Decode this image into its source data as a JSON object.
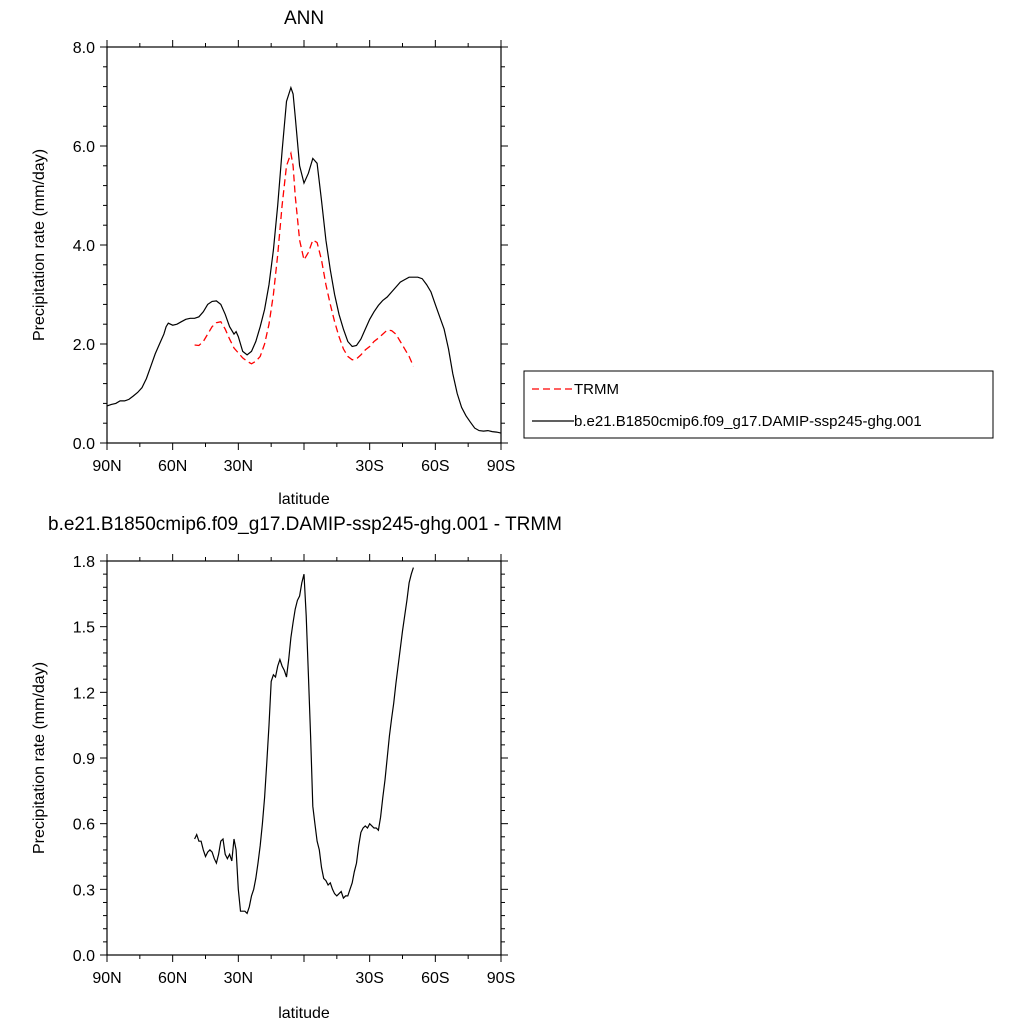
{
  "chart_data": [
    {
      "type": "line",
      "title": "ANN",
      "xlabel": "latitude",
      "ylabel": "Precipitation rate (mm/day)",
      "xlim": [
        90,
        -90
      ],
      "ylim": [
        0,
        8
      ],
      "x_tick_values": [
        90,
        60,
        30,
        0,
        -30,
        -60,
        -90
      ],
      "x_tick_labels": [
        "90N",
        "60N",
        "30N",
        "",
        "30S",
        "60S",
        "90S"
      ],
      "y_tick_values": [
        0,
        2,
        4,
        6,
        8
      ],
      "y_tick_labels": [
        "0.0",
        "2.0",
        "4.0",
        "6.0",
        "8.0"
      ],
      "legend_position": "right",
      "series": [
        {
          "name": "TRMM",
          "color": "#ff0000",
          "dash": true,
          "x": [
            50,
            48,
            46,
            44,
            42,
            40,
            38,
            36,
            34,
            32,
            30,
            28,
            26,
            24,
            22,
            20,
            18,
            16,
            14,
            12,
            10,
            8,
            6,
            5,
            4,
            2,
            0,
            -2,
            -4,
            -6,
            -8,
            -10,
            -12,
            -14,
            -16,
            -18,
            -20,
            -22,
            -24,
            -26,
            -28,
            -30,
            -32,
            -34,
            -36,
            -38,
            -40,
            -42,
            -44,
            -46,
            -48,
            -50
          ],
          "y": [
            1.98,
            1.97,
            2.05,
            2.2,
            2.35,
            2.43,
            2.45,
            2.3,
            2.1,
            1.92,
            1.82,
            1.72,
            1.65,
            1.6,
            1.65,
            1.75,
            2.0,
            2.4,
            3.0,
            3.8,
            4.8,
            5.6,
            5.85,
            5.6,
            5.0,
            4.1,
            3.7,
            3.85,
            4.1,
            4.05,
            3.7,
            3.2,
            2.8,
            2.45,
            2.15,
            1.9,
            1.75,
            1.68,
            1.7,
            1.78,
            1.88,
            1.95,
            2.05,
            2.12,
            2.2,
            2.28,
            2.27,
            2.2,
            2.05,
            1.9,
            1.75,
            1.55
          ]
        },
        {
          "name": "b.e21.B1850cmip6.f09_g17.DAMIP-ssp245-ghg.001",
          "color": "#000000",
          "dash": false,
          "x": [
            90,
            88,
            86,
            84,
            82,
            80,
            78,
            76,
            74,
            72,
            70,
            68,
            66,
            64,
            63,
            62,
            60,
            58,
            56,
            54,
            52,
            50,
            48,
            46,
            44,
            42,
            40,
            38,
            36,
            34,
            32,
            31,
            30,
            28,
            26,
            24,
            22,
            20,
            18,
            16,
            14,
            12,
            10,
            8,
            6,
            5,
            4,
            2,
            0,
            -2,
            -4,
            -6,
            -8,
            -10,
            -12,
            -14,
            -16,
            -18,
            -20,
            -22,
            -24,
            -26,
            -28,
            -30,
            -32,
            -34,
            -36,
            -38,
            -40,
            -42,
            -44,
            -46,
            -48,
            -50,
            -52,
            -54,
            -56,
            -58,
            -60,
            -62,
            -64,
            -66,
            -68,
            -70,
            -72,
            -74,
            -76,
            -78,
            -80,
            -82,
            -84,
            -86,
            -88,
            -90
          ],
          "y": [
            0.75,
            0.78,
            0.8,
            0.85,
            0.85,
            0.88,
            0.95,
            1.02,
            1.12,
            1.3,
            1.55,
            1.8,
            2.0,
            2.2,
            2.35,
            2.42,
            2.38,
            2.4,
            2.45,
            2.5,
            2.52,
            2.52,
            2.55,
            2.65,
            2.8,
            2.86,
            2.87,
            2.8,
            2.6,
            2.35,
            2.2,
            2.25,
            2.15,
            1.85,
            1.78,
            1.85,
            2.05,
            2.35,
            2.7,
            3.2,
            3.9,
            4.8,
            5.9,
            6.9,
            7.18,
            7.05,
            6.6,
            5.6,
            5.25,
            5.45,
            5.75,
            5.65,
            4.9,
            4.1,
            3.5,
            3.0,
            2.6,
            2.3,
            2.05,
            1.95,
            1.97,
            2.1,
            2.3,
            2.5,
            2.65,
            2.78,
            2.88,
            2.95,
            3.05,
            3.15,
            3.25,
            3.3,
            3.35,
            3.35,
            3.35,
            3.32,
            3.2,
            3.05,
            2.8,
            2.55,
            2.3,
            1.9,
            1.4,
            1.0,
            0.72,
            0.55,
            0.42,
            0.3,
            0.25,
            0.24,
            0.25,
            0.23,
            0.22,
            0.2
          ]
        }
      ]
    },
    {
      "type": "line",
      "title": "b.e21.B1850cmip6.f09_g17.DAMIP-ssp245-ghg.001 - TRMM",
      "xlabel": "latitude",
      "ylabel": "Precipitation rate (mm/day)",
      "xlim": [
        90,
        -90
      ],
      "ylim": [
        0,
        1.8
      ],
      "x_tick_values": [
        90,
        60,
        30,
        0,
        -30,
        -60,
        -90
      ],
      "x_tick_labels": [
        "90N",
        "60N",
        "30N",
        "",
        "30S",
        "60S",
        "90S"
      ],
      "y_tick_values": [
        0,
        0.3,
        0.6,
        0.9,
        1.2,
        1.5,
        1.8
      ],
      "y_tick_labels": [
        "0.0",
        "0.3",
        "0.6",
        "0.9",
        "1.2",
        "1.5",
        "1.8"
      ],
      "series": [
        {
          "name": "",
          "color": "#000000",
          "dash": false,
          "x": [
            50,
            49,
            48,
            47,
            46,
            45,
            44,
            43,
            42,
            41,
            40,
            39,
            38,
            37,
            36,
            35,
            34,
            33,
            32,
            31,
            30,
            29,
            28,
            27,
            26,
            25,
            24,
            23,
            22,
            21,
            20,
            19,
            18,
            17,
            16,
            15,
            14,
            13,
            12,
            11,
            10,
            9,
            8,
            7,
            6,
            5,
            4,
            3,
            2,
            1,
            0,
            -1,
            -2,
            -3,
            -4,
            -5,
            -6,
            -7,
            -8,
            -9,
            -10,
            -11,
            -12,
            -13,
            -14,
            -15,
            -16,
            -17,
            -18,
            -19,
            -20,
            -21,
            -22,
            -23,
            -24,
            -25,
            -26,
            -27,
            -28,
            -29,
            -30,
            -31,
            -32,
            -33,
            -34,
            -35,
            -36,
            -37,
            -38,
            -39,
            -40,
            -41,
            -42,
            -43,
            -44,
            -45,
            -46,
            -47,
            -48,
            -49,
            -50
          ],
          "y": [
            0.53,
            0.55,
            0.52,
            0.52,
            0.48,
            0.45,
            0.47,
            0.48,
            0.47,
            0.44,
            0.42,
            0.46,
            0.52,
            0.53,
            0.46,
            0.44,
            0.46,
            0.43,
            0.53,
            0.48,
            0.3,
            0.2,
            0.2,
            0.2,
            0.19,
            0.22,
            0.27,
            0.3,
            0.35,
            0.42,
            0.5,
            0.6,
            0.72,
            0.88,
            1.05,
            1.25,
            1.28,
            1.27,
            1.32,
            1.35,
            1.32,
            1.3,
            1.27,
            1.35,
            1.45,
            1.52,
            1.58,
            1.62,
            1.64,
            1.7,
            1.74,
            1.55,
            1.28,
            1.0,
            0.68,
            0.6,
            0.52,
            0.48,
            0.4,
            0.35,
            0.34,
            0.32,
            0.33,
            0.3,
            0.28,
            0.27,
            0.28,
            0.29,
            0.26,
            0.27,
            0.27,
            0.3,
            0.33,
            0.38,
            0.42,
            0.5,
            0.56,
            0.58,
            0.59,
            0.58,
            0.6,
            0.59,
            0.58,
            0.58,
            0.57,
            0.63,
            0.72,
            0.8,
            0.9,
            1.0,
            1.08,
            1.15,
            1.24,
            1.32,
            1.4,
            1.48,
            1.55,
            1.62,
            1.7,
            1.74,
            1.77
          ]
        }
      ]
    }
  ]
}
